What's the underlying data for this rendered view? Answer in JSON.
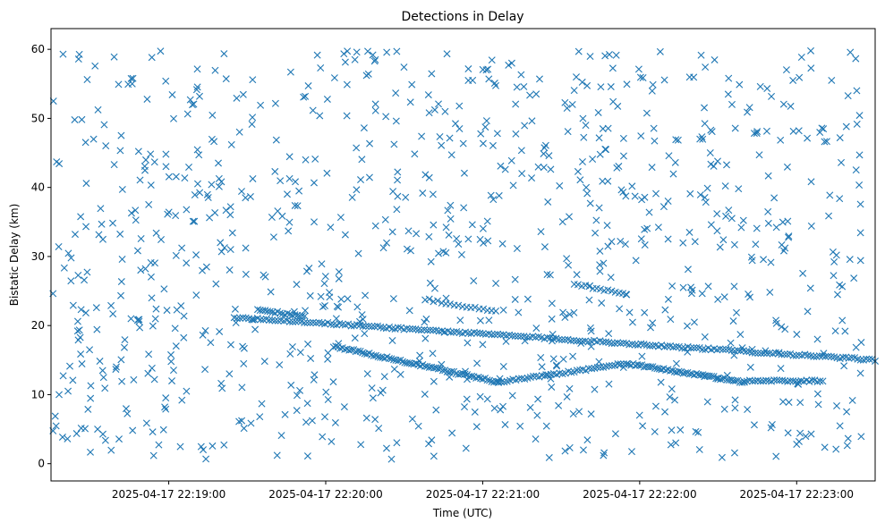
{
  "chart_data": {
    "type": "scatter",
    "title": "Detections in Delay",
    "xlabel": "Time (UTC)",
    "ylabel": "Bistatic Delay (km)",
    "xlim": [
      "2025-04-17 22:18:15",
      "2025-04-17 22:23:30"
    ],
    "ylim": [
      -2.5,
      63
    ],
    "x_ticks": [
      "2025-04-17 22:19:00",
      "2025-04-17 22:20:00",
      "2025-04-17 22:21:00",
      "2025-04-17 22:22:00",
      "2025-04-17 22:23:00"
    ],
    "y_ticks": [
      0,
      10,
      20,
      30,
      40,
      50,
      60
    ],
    "marker": "x",
    "color": "#1f77b4",
    "grid": false,
    "legend": "none",
    "tracks": [
      {
        "t_start": "2025-04-17 22:19:25",
        "t_end": "2025-04-17 22:23:30",
        "delay_start": 21.2,
        "delay_end": 15.0,
        "count": 220
      },
      {
        "t_start": "2025-04-17 22:20:03",
        "t_end": "2025-04-17 22:21:06",
        "delay_start": 17.0,
        "delay_end": 11.8,
        "count": 75
      },
      {
        "t_start": "2025-04-17 22:21:06",
        "t_end": "2025-04-17 22:21:55",
        "delay_start": 11.8,
        "delay_end": 14.5,
        "count": 45
      },
      {
        "t_start": "2025-04-17 22:21:55",
        "t_end": "2025-04-17 22:22:40",
        "delay_start": 14.5,
        "delay_end": 11.8,
        "count": 55
      },
      {
        "t_start": "2025-04-17 22:22:40",
        "t_end": "2025-04-17 22:23:10",
        "delay_start": 12.0,
        "delay_end": 12.0,
        "count": 30
      },
      {
        "t_start": "2025-04-17 22:19:34",
        "t_end": "2025-04-17 22:19:52",
        "delay_start": 22.3,
        "delay_end": 21.3,
        "count": 20
      },
      {
        "t_start": "2025-04-17 22:20:38",
        "t_end": "2025-04-17 22:21:05",
        "delay_start": 23.8,
        "delay_end": 22.0,
        "count": 18
      },
      {
        "t_start": "2025-04-17 22:21:35",
        "t_end": "2025-04-17 22:21:55",
        "delay_start": 26.0,
        "delay_end": 24.6,
        "count": 15
      }
    ],
    "scattered": {
      "t_start": "2025-04-17 22:18:15",
      "t_end": "2025-04-17 22:23:25",
      "delay_min": 0.5,
      "delay_max": 59.8,
      "count": 950
    }
  }
}
